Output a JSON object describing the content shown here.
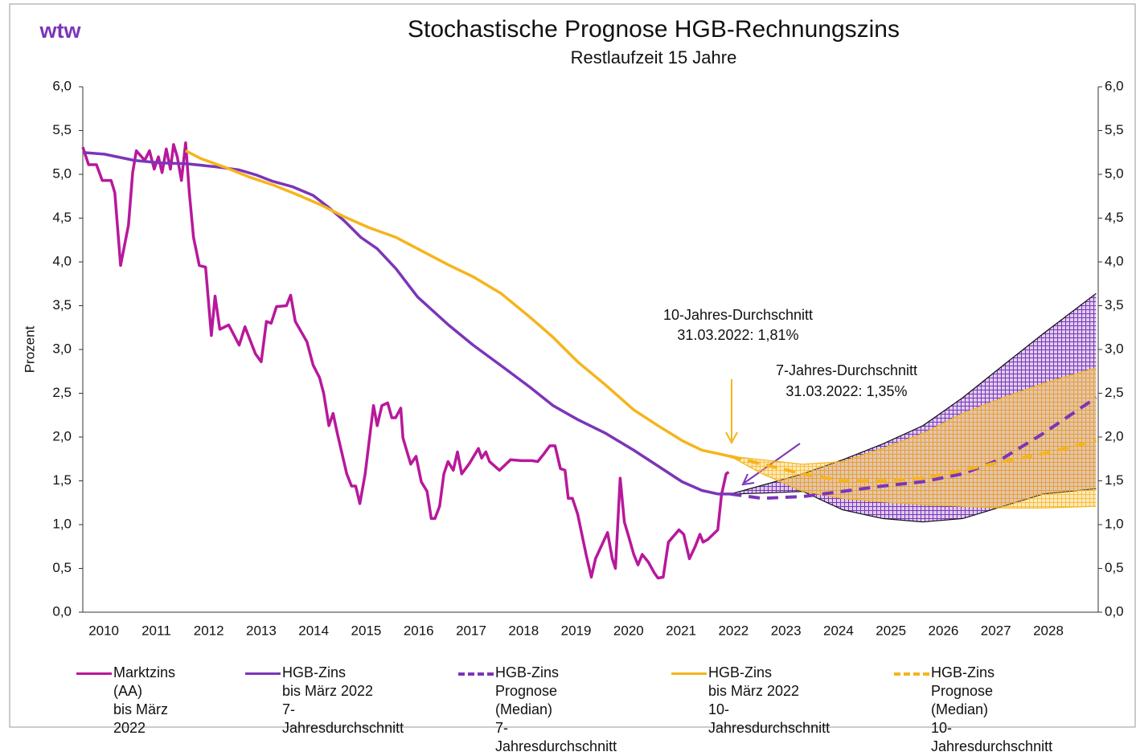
{
  "brand": "wtw",
  "chart_data": {
    "type": "line",
    "title": "Stochastische Prognose HGB-Rechnungszins",
    "subtitle": "Restlaufzeit 15 Jahre",
    "y_label": "Prozent",
    "xlim": [
      2010.1,
      2029.45
    ],
    "xticks": [
      {
        "value": 2010.5,
        "label": "2010"
      },
      {
        "value": 2011.5,
        "label": "2011"
      },
      {
        "value": 2012.5,
        "label": "2012"
      },
      {
        "value": 2013.5,
        "label": "2013"
      },
      {
        "value": 2014.5,
        "label": "2014"
      },
      {
        "value": 2015.5,
        "label": "2015"
      },
      {
        "value": 2016.5,
        "label": "2016"
      },
      {
        "value": 2017.5,
        "label": "2017"
      },
      {
        "value": 2018.5,
        "label": "2018"
      },
      {
        "value": 2019.5,
        "label": "2019"
      },
      {
        "value": 2020.5,
        "label": "2020"
      },
      {
        "value": 2021.5,
        "label": "2021"
      },
      {
        "value": 2022.5,
        "label": "2022"
      },
      {
        "value": 2023.5,
        "label": "2023"
      },
      {
        "value": 2024.5,
        "label": "2024"
      },
      {
        "value": 2025.5,
        "label": "2025"
      },
      {
        "value": 2026.5,
        "label": "2026"
      },
      {
        "value": 2027.5,
        "label": "2027"
      },
      {
        "value": 2028.5,
        "label": "2028"
      }
    ],
    "ylim": [
      0,
      6
    ],
    "yticks": [
      {
        "value": 0,
        "label": "0,0"
      },
      {
        "value": 0.5,
        "label": "0,5"
      },
      {
        "value": 1,
        "label": "1,0"
      },
      {
        "value": 1.5,
        "label": "1,5"
      },
      {
        "value": 2,
        "label": "2,0"
      },
      {
        "value": 2.5,
        "label": "2,5"
      },
      {
        "value": 3,
        "label": "3,0"
      },
      {
        "value": 3.5,
        "label": "3,5"
      },
      {
        "value": 4,
        "label": "4,0"
      },
      {
        "value": 4.5,
        "label": "4,5"
      },
      {
        "value": 5,
        "label": "5,0"
      },
      {
        "value": 5.5,
        "label": "5,5"
      },
      {
        "value": 6,
        "label": "6,0"
      }
    ],
    "right_axis_mirror": true,
    "grid": false,
    "bands": [
      {
        "color": "#7b35b8",
        "x": [
          2022.44,
          2023.05,
          2023.82,
          2024.58,
          2025.34,
          2026.11,
          2026.87,
          2027.64,
          2028.4,
          2029.41
        ],
        "upper": [
          1.35,
          1.45,
          1.58,
          1.74,
          1.92,
          2.13,
          2.45,
          2.82,
          3.18,
          3.64
        ],
        "lower": [
          1.35,
          1.36,
          1.38,
          1.17,
          1.07,
          1.03,
          1.07,
          1.21,
          1.35,
          1.41
        ]
      },
      {
        "color": "#f6b41c",
        "x": [
          2022.44,
          2023.05,
          2023.82,
          2024.58,
          2025.34,
          2026.11,
          2026.87,
          2027.64,
          2028.4,
          2029.41
        ],
        "upper": [
          1.78,
          1.74,
          1.69,
          1.72,
          1.87,
          2.04,
          2.27,
          2.45,
          2.61,
          2.79
        ],
        "lower": [
          1.78,
          1.58,
          1.38,
          1.3,
          1.26,
          1.23,
          1.21,
          1.19,
          1.19,
          1.21
        ]
      }
    ],
    "series": [
      {
        "name": "Marktzins (AA)\nbis März 2022",
        "color": "#b8189b",
        "dash": false,
        "x": [
          2010.1,
          2010.21,
          2010.36,
          2010.47,
          2010.64,
          2010.71,
          2010.82,
          2010.97,
          2011.05,
          2011.12,
          2011.28,
          2011.37,
          2011.46,
          2011.54,
          2011.61,
          2011.69,
          2011.77,
          2011.83,
          2011.9,
          2011.98,
          2012.06,
          2012.13,
          2012.21,
          2012.32,
          2012.44,
          2012.55,
          2012.62,
          2012.71,
          2012.88,
          2013.08,
          2013.19,
          2013.39,
          2013.5,
          2013.6,
          2013.69,
          2013.79,
          2013.98,
          2014.06,
          2014.15,
          2014.37,
          2014.49,
          2014.61,
          2014.69,
          2014.79,
          2014.87,
          2014.95,
          2015.13,
          2015.22,
          2015.3,
          2015.38,
          2015.48,
          2015.64,
          2015.71,
          2015.8,
          2015.91,
          2015.99,
          2016.06,
          2016.16,
          2016.2,
          2016.35,
          2016.45,
          2016.55,
          2016.66,
          2016.74,
          2016.81,
          2016.9,
          2016.98,
          2017.06,
          2017.16,
          2017.24,
          2017.32,
          2017.47,
          2017.64,
          2017.7,
          2017.78,
          2017.85,
          2018.04,
          2018.25,
          2018.46,
          2018.66,
          2018.77,
          2018.89,
          2019.0,
          2019.1,
          2019.2,
          2019.29,
          2019.35,
          2019.43,
          2019.53,
          2019.69,
          2019.79,
          2019.87,
          2020.1,
          2020.19,
          2020.25,
          2020.34,
          2020.42,
          2020.5,
          2020.6,
          2020.68,
          2020.76,
          2020.88,
          2020.99,
          2021.06,
          2021.16,
          2021.26,
          2021.46,
          2021.55,
          2021.66,
          2021.77,
          2021.86,
          2021.92,
          2022.01,
          2022.2,
          2022.27,
          2022.36,
          2022.41
        ],
        "values": [
          5.31,
          5.11,
          5.11,
          4.93,
          4.93,
          4.79,
          3.96,
          4.42,
          5.02,
          5.27,
          5.16,
          5.27,
          5.06,
          5.2,
          5.02,
          5.29,
          5.06,
          5.34,
          5.2,
          4.93,
          5.36,
          4.79,
          4.28,
          3.96,
          3.94,
          3.16,
          3.61,
          3.23,
          3.28,
          3.05,
          3.26,
          2.95,
          2.86,
          3.32,
          3.3,
          3.49,
          3.5,
          3.62,
          3.32,
          3.09,
          2.82,
          2.68,
          2.5,
          2.13,
          2.27,
          2.04,
          1.58,
          1.44,
          1.44,
          1.24,
          1.58,
          2.36,
          2.13,
          2.36,
          2.39,
          2.22,
          2.22,
          2.33,
          1.99,
          1.69,
          1.78,
          1.49,
          1.38,
          1.07,
          1.07,
          1.21,
          1.58,
          1.72,
          1.62,
          1.83,
          1.58,
          1.7,
          1.87,
          1.76,
          1.83,
          1.72,
          1.62,
          1.74,
          1.73,
          1.73,
          1.72,
          1.81,
          1.9,
          1.9,
          1.64,
          1.62,
          1.3,
          1.3,
          1.12,
          0.66,
          0.4,
          0.61,
          0.91,
          0.61,
          0.5,
          1.53,
          1.03,
          0.87,
          0.66,
          0.54,
          0.66,
          0.57,
          0.45,
          0.39,
          0.4,
          0.8,
          0.94,
          0.89,
          0.61,
          0.75,
          0.89,
          0.8,
          0.83,
          0.94,
          1.34,
          1.58,
          1.6
        ]
      },
      {
        "name": "HGB-Zins\nbis März 2022\n7-Jahresdurchschnitt",
        "color": "#7b35b8",
        "dash": false,
        "x": [
          2010.1,
          2010.51,
          2011.08,
          2011.58,
          2012.09,
          2012.58,
          2013.08,
          2013.42,
          2013.72,
          2014.09,
          2014.49,
          2014.79,
          2015.08,
          2015.4,
          2015.71,
          2016.07,
          2016.48,
          2017.07,
          2017.54,
          2018.06,
          2018.62,
          2019.06,
          2019.53,
          2020.07,
          2020.6,
          2021.06,
          2021.52,
          2021.9,
          2022.21,
          2022.44
        ],
        "values": [
          5.25,
          5.23,
          5.16,
          5.13,
          5.12,
          5.09,
          5.05,
          4.99,
          4.92,
          4.86,
          4.76,
          4.62,
          4.47,
          4.28,
          4.15,
          3.92,
          3.6,
          3.28,
          3.05,
          2.82,
          2.57,
          2.36,
          2.2,
          2.04,
          1.85,
          1.67,
          1.49,
          1.39,
          1.35,
          1.35
        ]
      },
      {
        "name": "HGB-Zins\nPrognose (Median)\n7-Jahresdurchschnitt",
        "color": "#7b35b8",
        "dash": true,
        "x": [
          2022.44,
          2023.05,
          2023.82,
          2024.58,
          2025.34,
          2026.11,
          2026.87,
          2027.64,
          2028.4,
          2029.41
        ],
        "values": [
          1.35,
          1.3,
          1.32,
          1.38,
          1.44,
          1.49,
          1.58,
          1.76,
          2.04,
          2.45
        ]
      },
      {
        "name": "HGB-Zins\nbis März 2022\n10-Jahresdurchschnitt",
        "color": "#f6b41c",
        "dash": false,
        "x": [
          2012.06,
          2012.35,
          2012.81,
          2013.27,
          2013.72,
          2014.18,
          2014.64,
          2015.1,
          2015.56,
          2016.07,
          2016.48,
          2017.09,
          2017.54,
          2018.07,
          2018.62,
          2019.06,
          2019.53,
          2020.07,
          2020.6,
          2021.06,
          2021.52,
          2021.9,
          2022.21,
          2022.44
        ],
        "values": [
          5.27,
          5.18,
          5.08,
          4.97,
          4.88,
          4.77,
          4.65,
          4.51,
          4.39,
          4.28,
          4.15,
          3.96,
          3.83,
          3.64,
          3.37,
          3.14,
          2.86,
          2.59,
          2.31,
          2.13,
          1.96,
          1.85,
          1.81,
          1.78
        ]
      },
      {
        "name": "HGB-Zins\nPrognose (Median)\n10-Jahresdurchschnitt",
        "color": "#f6b41c",
        "dash": true,
        "x": [
          2022.44,
          2023.05,
          2023.82,
          2024.58,
          2025.34,
          2026.11,
          2026.87,
          2027.64,
          2028.4,
          2029.41
        ],
        "values": [
          1.78,
          1.69,
          1.58,
          1.5,
          1.5,
          1.53,
          1.62,
          1.72,
          1.81,
          1.96
        ]
      }
    ],
    "annotations": [
      {
        "lines": [
          "10-Jahres-Durchschnitt",
          "31.03.2022: 1,81%"
        ]
      },
      {
        "lines": [
          "7-Jahres-Durchschnitt",
          "31.03.2022: 1,35%"
        ]
      }
    ]
  }
}
